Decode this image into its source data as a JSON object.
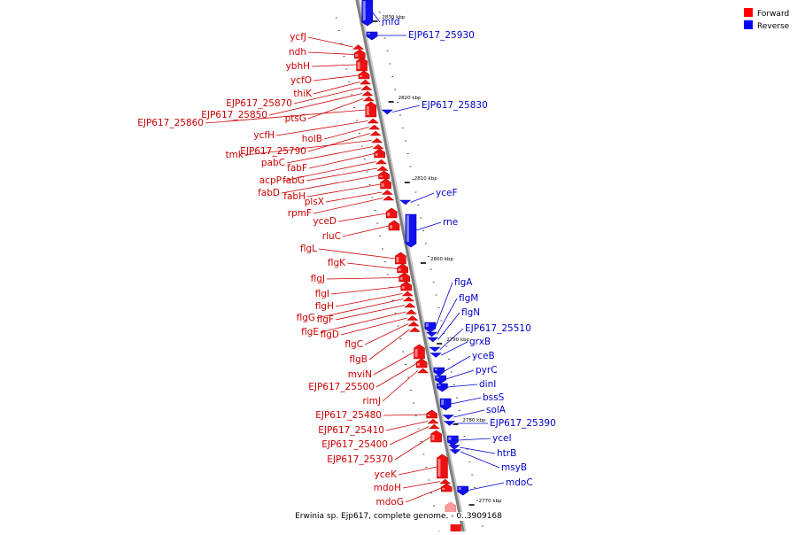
{
  "legend": {
    "forward": {
      "label": "Forward",
      "color": "#ff0000"
    },
    "reverse": {
      "label": "Reverse",
      "color": "#0000ff"
    }
  },
  "caption": "Erwinia sp. Ejp617, complete genome. - 0..3909168",
  "axis": {
    "unit": "kbp",
    "ticks_kbp": [
      2830,
      2820,
      2810,
      2800,
      2790,
      2780,
      2770
    ],
    "top_kbp": 2833,
    "bottom_kbp": 2769
  },
  "genes_forward": [
    {
      "name": "ycfJ",
      "color": "#cc0000"
    },
    {
      "name": "ndh",
      "color": "#cc0000"
    },
    {
      "name": "ybhH",
      "color": "#cc0000"
    },
    {
      "name": "ycfO",
      "color": "#cc0000"
    },
    {
      "name": "thiK",
      "color": "#cc0000"
    },
    {
      "name": "EJP617_25870",
      "color": "#cc0000"
    },
    {
      "name": "EJP617_25850",
      "color": "#cc0000"
    },
    {
      "name": "ptsG",
      "color": "#cc0000"
    },
    {
      "name": "EJP617_25860",
      "color": "#cc0000"
    },
    {
      "name": "ycfH",
      "color": "#cc0000"
    },
    {
      "name": "holB",
      "color": "#cc0000"
    },
    {
      "name": "EJP617_25790",
      "color": "#cc0000"
    },
    {
      "name": "tmk",
      "color": "#cc0000"
    },
    {
      "name": "pabC",
      "color": "#cc0000"
    },
    {
      "name": "fabF",
      "color": "#cc0000"
    },
    {
      "name": "acpP",
      "color": "#cc0000"
    },
    {
      "name": "fabG",
      "color": "#cc0000"
    },
    {
      "name": "fabD",
      "color": "#cc0000"
    },
    {
      "name": "fabH",
      "color": "#cc0000"
    },
    {
      "name": "plsX",
      "color": "#cc0000"
    },
    {
      "name": "rpmF",
      "color": "#cc0000"
    },
    {
      "name": "yceD",
      "color": "#cc0000"
    },
    {
      "name": "rluC",
      "color": "#cc0000"
    },
    {
      "name": "flgL",
      "color": "#cc0000"
    },
    {
      "name": "flgK",
      "color": "#cc0000"
    },
    {
      "name": "flgJ",
      "color": "#cc0000"
    },
    {
      "name": "flgI",
      "color": "#cc0000"
    },
    {
      "name": "flgH",
      "color": "#cc0000"
    },
    {
      "name": "flgG",
      "color": "#cc0000"
    },
    {
      "name": "flgF",
      "color": "#cc0000"
    },
    {
      "name": "flgE",
      "color": "#cc0000"
    },
    {
      "name": "flgD",
      "color": "#cc0000"
    },
    {
      "name": "flgC",
      "color": "#cc0000"
    },
    {
      "name": "flgB",
      "color": "#cc0000"
    },
    {
      "name": "mviN",
      "color": "#cc0000"
    },
    {
      "name": "EJP617_25500",
      "color": "#cc0000"
    },
    {
      "name": "rimJ",
      "color": "#cc0000"
    },
    {
      "name": "EJP617_25480",
      "color": "#cc0000"
    },
    {
      "name": "EJP617_25410",
      "color": "#cc0000"
    },
    {
      "name": "EJP617_25400",
      "color": "#cc0000"
    },
    {
      "name": "EJP617_25370",
      "color": "#cc0000"
    },
    {
      "name": "yceK",
      "color": "#cc0000"
    },
    {
      "name": "mdoH",
      "color": "#cc0000"
    },
    {
      "name": "mdoG",
      "color": "#cc0000"
    }
  ],
  "genes_reverse": [
    {
      "name": "mfd",
      "color": "#0000cc"
    },
    {
      "name": "EJP617_25930",
      "color": "#0000cc"
    },
    {
      "name": "EJP617_25830",
      "color": "#0000cc"
    },
    {
      "name": "yceF",
      "color": "#0000cc"
    },
    {
      "name": "rne",
      "color": "#0000cc"
    },
    {
      "name": "flgA",
      "color": "#0000cc"
    },
    {
      "name": "flgM",
      "color": "#0000cc"
    },
    {
      "name": "flgN",
      "color": "#0000cc"
    },
    {
      "name": "EJP617_25510",
      "color": "#0000cc"
    },
    {
      "name": "grxB",
      "color": "#0000cc"
    },
    {
      "name": "yceB",
      "color": "#0000cc"
    },
    {
      "name": "pyrC",
      "color": "#0000cc"
    },
    {
      "name": "dinI",
      "color": "#0000cc"
    },
    {
      "name": "bssS",
      "color": "#0000cc"
    },
    {
      "name": "solA",
      "color": "#0000cc"
    },
    {
      "name": "EJP617_25390",
      "color": "#0000cc"
    },
    {
      "name": "yceI",
      "color": "#0000cc"
    },
    {
      "name": "htrB",
      "color": "#0000cc"
    },
    {
      "name": "msyB",
      "color": "#0000cc"
    },
    {
      "name": "mdoC",
      "color": "#0000cc"
    }
  ]
}
